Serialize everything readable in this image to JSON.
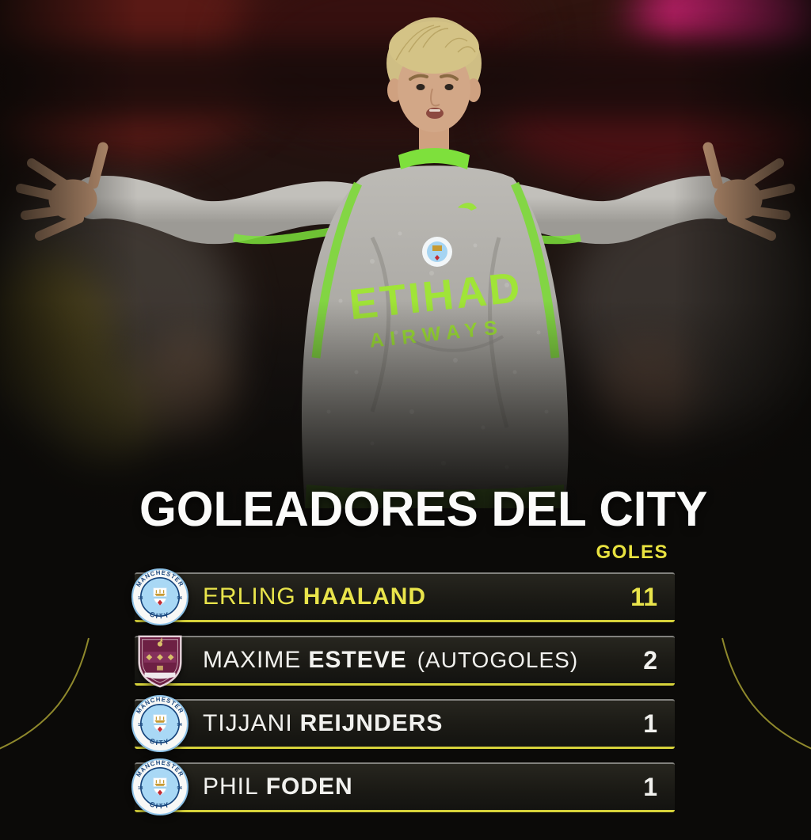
{
  "title": "GOLEADORES DEL CITY",
  "column_header": "GOLES",
  "rows": [
    {
      "badge": "manchester-city-badge",
      "first_name": "ERLING",
      "last_name": "HAALAND",
      "note": "",
      "goals": "11",
      "highlight": true
    },
    {
      "badge": "burnley-badge",
      "first_name": "MAXIME",
      "last_name": "ESTEVE",
      "note": "(AUTOGOLES)",
      "goals": "2",
      "highlight": false
    },
    {
      "badge": "manchester-city-badge",
      "first_name": "TIJJANI",
      "last_name": "REIJNDERS",
      "note": "",
      "goals": "1",
      "highlight": false
    },
    {
      "badge": "manchester-city-badge",
      "first_name": "PHIL",
      "last_name": "FODEN",
      "note": "",
      "goals": "1",
      "highlight": false
    }
  ],
  "photo": {
    "shirt_sponsor_line1": "ETIHAD",
    "shirt_sponsor_line2": "AIRWAYS",
    "city_badge_top_text": "MANCHESTER",
    "city_badge_bottom_text": "CITY",
    "city_badge_year_left": "18",
    "city_badge_year_right": "94"
  },
  "colors": {
    "accent_yellow": "#e8e23f",
    "highlight_text": "#e9e44b",
    "row_underline": "#d6d23a",
    "row_background": "#1d1c17",
    "body_text": "#f1f1ee",
    "page_background": "#0b0a08",
    "city_sky_blue": "#a9d8f5",
    "burnley_claret": "#6d2044",
    "kit_green": "#7ee03c",
    "kit_grey": "#b0aea9"
  },
  "chart_data": {
    "type": "table",
    "title": "GOLEADORES DEL CITY",
    "value_column": "GOLES",
    "rows": [
      {
        "player": "ERLING HAALAND",
        "club_badge": "manchester-city",
        "goals": 11,
        "note": ""
      },
      {
        "player": "MAXIME ESTEVE",
        "club_badge": "burnley",
        "goals": 2,
        "note": "AUTOGOLES"
      },
      {
        "player": "TIJJANI REIJNDERS",
        "club_badge": "manchester-city",
        "goals": 1,
        "note": ""
      },
      {
        "player": "PHIL FODEN",
        "club_badge": "manchester-city",
        "goals": 1,
        "note": ""
      }
    ]
  }
}
